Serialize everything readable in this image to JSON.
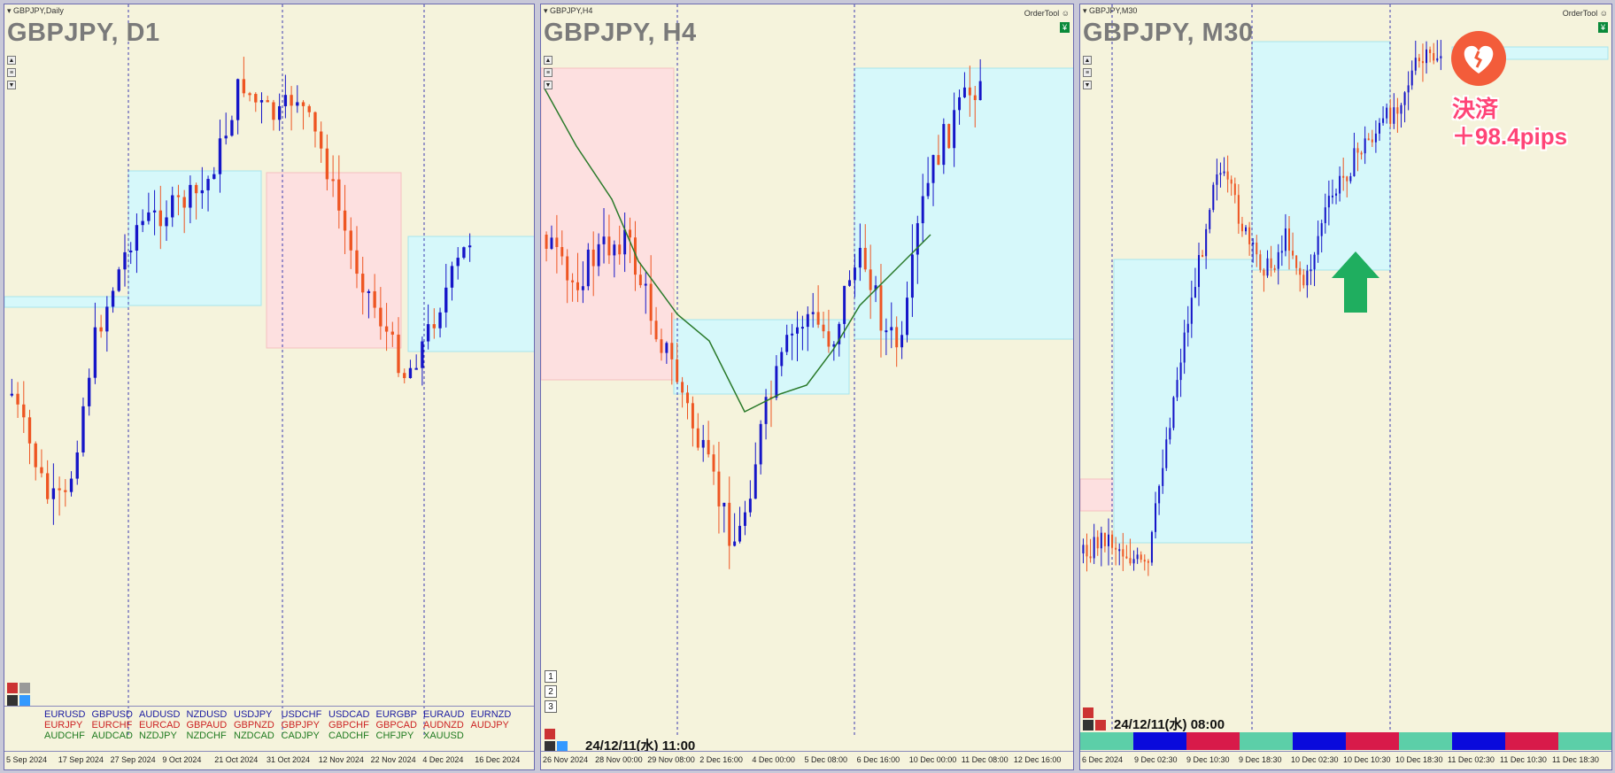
{
  "panels": [
    {
      "window_title": "GBPJPY,Daily",
      "symbol": "GBPJPY, D1",
      "x_ticks": [
        "5 Sep 2024",
        "17 Sep 2024",
        "27 Sep 2024",
        "9 Oct 2024",
        "21 Oct 2024",
        "31 Oct 2024",
        "12 Nov 2024",
        "22 Nov 2024",
        "4 Dec 2024",
        "16 Dec 2024"
      ],
      "currency_pairs": [
        {
          "label": "EURUSD",
          "color": "#1a1aa0"
        },
        {
          "label": "GBPUSD",
          "color": "#1a1aa0"
        },
        {
          "label": "AUDUSD",
          "color": "#1a1aa0"
        },
        {
          "label": "NZDUSD",
          "color": "#1a1aa0"
        },
        {
          "label": "USDJPY",
          "color": "#1a1aa0"
        },
        {
          "label": "USDCHF",
          "color": "#1a1aa0"
        },
        {
          "label": "USDCAD",
          "color": "#1a1aa0"
        },
        {
          "label": "EURGBP",
          "color": "#1a1aa0"
        },
        {
          "label": "EURAUD",
          "color": "#1a1aa0"
        },
        {
          "label": "EURNZD",
          "color": "#1a1aa0"
        },
        {
          "label": "EURJPY",
          "color": "#cc2222"
        },
        {
          "label": "EURCHF",
          "color": "#cc2222"
        },
        {
          "label": "EURCAD",
          "color": "#cc2222"
        },
        {
          "label": "GBPAUD",
          "color": "#cc2222"
        },
        {
          "label": "GBPNZD",
          "color": "#cc2222"
        },
        {
          "label": "GBPJPY",
          "color": "#cc2222"
        },
        {
          "label": "GBPCHF",
          "color": "#cc2222"
        },
        {
          "label": "GBPCAD",
          "color": "#cc2222"
        },
        {
          "label": "AUDNZD",
          "color": "#cc2222"
        },
        {
          "label": "AUDJPY",
          "color": "#cc2222"
        },
        {
          "label": "AUDCHF",
          "color": "#1f7a1f"
        },
        {
          "label": "AUDCAD",
          "color": "#1f7a1f"
        },
        {
          "label": "NZDJPY",
          "color": "#1f7a1f"
        },
        {
          "label": "NZDCHF",
          "color": "#1f7a1f"
        },
        {
          "label": "NZDCAD",
          "color": "#1f7a1f"
        },
        {
          "label": "CADJPY",
          "color": "#1f7a1f"
        },
        {
          "label": "CADCHF",
          "color": "#1f7a1f"
        },
        {
          "label": "CHFJPY",
          "color": "#1f7a1f"
        },
        {
          "label": "XAUUSD",
          "color": "#1f7a1f"
        }
      ]
    },
    {
      "window_title": "GBPJPY,H4",
      "symbol": "GBPJPY, H4",
      "ordertool": "OrderTool",
      "x_ticks": [
        "26 Nov 2024",
        "28 Nov 00:00",
        "29 Nov 08:00",
        "2 Dec 16:00",
        "4 Dec 00:00",
        "5 Dec 08:00",
        "6 Dec 16:00",
        "10 Dec 00:00",
        "11 Dec 08:00",
        "12 Dec 16:00"
      ],
      "timestamp": "24/12/11(水) 11:00",
      "buttons": [
        "1",
        "2",
        "3"
      ]
    },
    {
      "window_title": "GBPJPY,M30",
      "symbol": "GBPJPY, M30",
      "ordertool": "OrderTool",
      "x_ticks": [
        "6 Dec 2024",
        "9 Dec 02:30",
        "9 Dec 10:30",
        "9 Dec 18:30",
        "10 Dec 02:30",
        "10 Dec 10:30",
        "10 Dec 18:30",
        "11 Dec 02:30",
        "11 Dec 10:30",
        "11 Dec 18:30"
      ],
      "timestamp": "24/12/11(水) 08:00",
      "strip_colors": [
        "#5ccfa8",
        "#0a0adc",
        "#d81a4a",
        "#5ccfa8",
        "#0a0adc",
        "#d81a4a",
        "#5ccfa8",
        "#0a0adc",
        "#d81a4a",
        "#5ccfa8"
      ]
    }
  ],
  "annotation": {
    "line1": "決済",
    "line2": "＋98.4pips",
    "icon": "broken-heart-icon",
    "arrow": "up-arrow-icon",
    "arrow_color": "#1fae5f"
  },
  "colors": {
    "bull": "#1515c8",
    "bear": "#ee5522",
    "box_blue": "#d6f8fa",
    "box_pink": "#fde0e0",
    "ma": "#2a7a2a"
  }
}
